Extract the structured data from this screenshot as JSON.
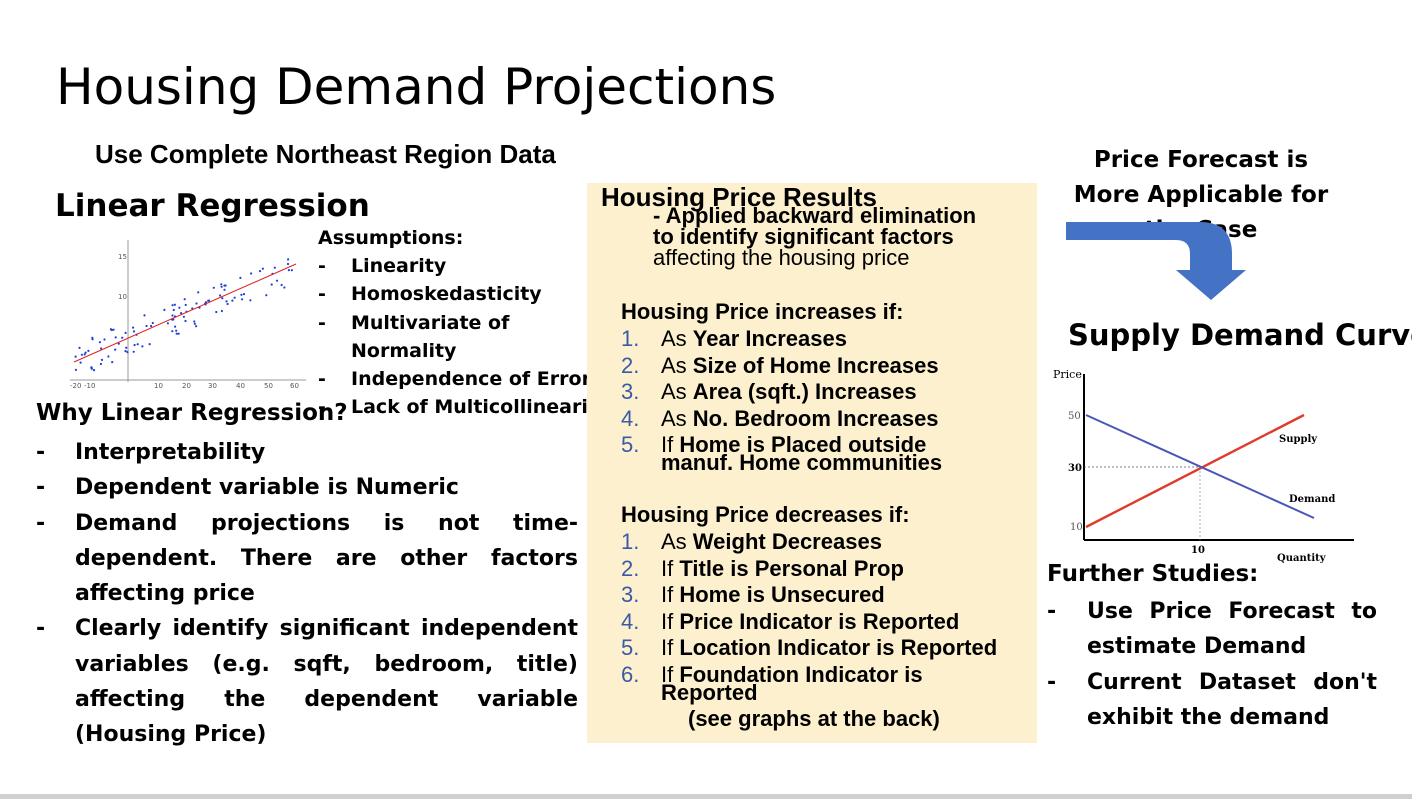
{
  "title": "Housing Demand Projections",
  "subtitle": "Use Complete Northeast Region Data",
  "linear_regression": {
    "heading": "Linear Regression",
    "assumptions_label": "Assumptions:",
    "assumptions": [
      "Linearity",
      "Homoskedasticity",
      "Multivariate of",
      "Normality",
      "Independence of Errors",
      "Lack of Multicollinearity"
    ],
    "scatter": {
      "y_ticks": [
        "15",
        "10"
      ],
      "x_ticks": [
        "-20",
        "-10",
        "10",
        "20",
        "30",
        "40",
        "50",
        "60"
      ],
      "point_color": "#1f3fd6",
      "line_color": "#e02020"
    }
  },
  "why": {
    "heading": "Why Linear Regression?",
    "items": [
      "Interpretability",
      "Dependent variable is Numeric",
      "Demand projections is not time-dependent. There are other factors affecting price",
      "Clearly identify significant independent variables (e.g. sqft, bedroom, title) affecting the dependent variable (Housing Price)"
    ]
  },
  "results": {
    "heading": "Housing Price Results",
    "sub_line1": "- Applied backward elimination",
    "sub_line2": "to identify significant factors",
    "sub_line3": "affecting the housing price",
    "increase_heading": "Housing Price increases if:",
    "increase": [
      {
        "num": "1.",
        "pre": "As ",
        "bold": "Year Increases",
        "post": ""
      },
      {
        "num": "2.",
        "pre": "As ",
        "bold": "Size of Home Increases",
        "post": ""
      },
      {
        "num": "3.",
        "pre": "As ",
        "bold": "Area (sqft.) Increases",
        "post": ""
      },
      {
        "num": "4.",
        "pre": "As ",
        "bold": "No. Bedroom Increases",
        "post": ""
      },
      {
        "num": "5.",
        "pre": "If ",
        "bold": "Home is Placed outside",
        "post": ""
      }
    ],
    "increase_cont": "manuf. Home communities",
    "decrease_heading": "Housing Price decreases if:",
    "decrease": [
      {
        "num": "1.",
        "pre": "As ",
        "bold": "Weight Decreases",
        "post": ""
      },
      {
        "num": "2.",
        "pre": "If ",
        "bold": "Title is Personal Prop",
        "post": ""
      },
      {
        "num": "3.",
        "pre": "If ",
        "bold": "Home is Unsecured",
        "post": ""
      },
      {
        "num": "4.",
        "pre": "If ",
        "bold": "Price Indicator is Reported",
        "post": ""
      },
      {
        "num": "5.",
        "pre": "If ",
        "bold": "Location Indicator is Reported",
        "post": ""
      },
      {
        "num": "6.",
        "pre": "If ",
        "bold": "Foundation Indicator is",
        "post": ""
      }
    ],
    "decrease_cont": "Reported",
    "see_graphs": "(see graphs at the back)",
    "box_color": "#fdf0cf"
  },
  "forecast": {
    "text": "Price Forecast is More Applicable for the Case",
    "arrow_color": "#4472c4"
  },
  "supply_demand": {
    "heading": "Supply Demand Curve",
    "y_axis_label": "Price",
    "x_axis_label": "Quantity",
    "y_ticks": [
      "50",
      "30",
      "10"
    ],
    "x_tick": "10",
    "supply_label": "Supply",
    "demand_label": "Demand",
    "supply_color": "#e03a2a",
    "demand_color": "#4a55b8"
  },
  "further": {
    "heading": "Further Studies:",
    "items": [
      "Use Price Forecast to estimate Demand",
      "Current Dataset don't exhibit the demand"
    ]
  }
}
